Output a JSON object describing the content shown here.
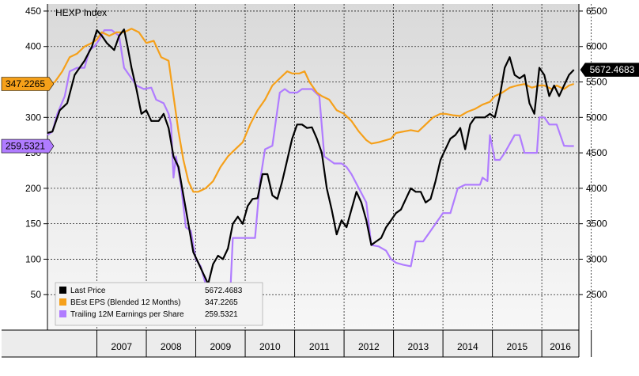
{
  "chart_data": {
    "type": "line",
    "title": "HEXP Index",
    "x_range": [
      2006.0,
      2016.75
    ],
    "left_axis": {
      "ticks": [
        50,
        100,
        150,
        200,
        250,
        300,
        350,
        400,
        450
      ],
      "range": [
        0,
        460
      ]
    },
    "right_axis": {
      "ticks": [
        2500,
        3000,
        3500,
        4000,
        4500,
        5000,
        5500,
        6000,
        6500
      ],
      "range": [
        2000,
        6600
      ]
    },
    "year_labels": [
      "2007",
      "2008",
      "2009",
      "2010",
      "2011",
      "2012",
      "2013",
      "2014",
      "2015",
      "2016"
    ],
    "grid": true,
    "legend_position": "bottom-left",
    "series": [
      {
        "name": "Last Price",
        "axis": "right",
        "color": "#000000",
        "last_value_label": "5672.4683",
        "points": [
          [
            2006.0,
            4780
          ],
          [
            2006.1,
            4800
          ],
          [
            2006.25,
            5100
          ],
          [
            2006.4,
            5200
          ],
          [
            2006.55,
            5600
          ],
          [
            2006.75,
            5800
          ],
          [
            2006.9,
            6000
          ],
          [
            2007.0,
            6230
          ],
          [
            2007.1,
            6150
          ],
          [
            2007.2,
            6050
          ],
          [
            2007.35,
            5950
          ],
          [
            2007.45,
            6150
          ],
          [
            2007.55,
            6240
          ],
          [
            2007.62,
            6000
          ],
          [
            2007.7,
            5700
          ],
          [
            2007.8,
            5400
          ],
          [
            2007.9,
            5050
          ],
          [
            2008.0,
            5100
          ],
          [
            2008.1,
            4950
          ],
          [
            2008.25,
            4950
          ],
          [
            2008.35,
            5050
          ],
          [
            2008.45,
            4850
          ],
          [
            2008.55,
            4450
          ],
          [
            2008.65,
            4300
          ],
          [
            2008.75,
            3900
          ],
          [
            2008.85,
            3500
          ],
          [
            2008.95,
            3100
          ],
          [
            2009.05,
            2950
          ],
          [
            2009.15,
            2800
          ],
          [
            2009.25,
            2650
          ],
          [
            2009.35,
            2930
          ],
          [
            2009.45,
            3050
          ],
          [
            2009.55,
            3000
          ],
          [
            2009.65,
            3150
          ],
          [
            2009.75,
            3500
          ],
          [
            2009.85,
            3600
          ],
          [
            2009.95,
            3500
          ],
          [
            2010.05,
            3750
          ],
          [
            2010.15,
            3850
          ],
          [
            2010.25,
            3860
          ],
          [
            2010.35,
            4200
          ],
          [
            2010.45,
            4200
          ],
          [
            2010.55,
            3900
          ],
          [
            2010.65,
            3850
          ],
          [
            2010.75,
            4100
          ],
          [
            2010.85,
            4400
          ],
          [
            2010.95,
            4700
          ],
          [
            2011.05,
            4900
          ],
          [
            2011.15,
            4900
          ],
          [
            2011.25,
            4850
          ],
          [
            2011.35,
            4860
          ],
          [
            2011.45,
            4700
          ],
          [
            2011.55,
            4500
          ],
          [
            2011.65,
            4000
          ],
          [
            2011.75,
            3700
          ],
          [
            2011.85,
            3350
          ],
          [
            2011.95,
            3550
          ],
          [
            2012.05,
            3450
          ],
          [
            2012.15,
            3700
          ],
          [
            2012.25,
            3950
          ],
          [
            2012.35,
            3800
          ],
          [
            2012.45,
            3550
          ],
          [
            2012.55,
            3200
          ],
          [
            2012.65,
            3250
          ],
          [
            2012.75,
            3300
          ],
          [
            2012.85,
            3450
          ],
          [
            2012.95,
            3550
          ],
          [
            2013.05,
            3650
          ],
          [
            2013.15,
            3700
          ],
          [
            2013.25,
            3850
          ],
          [
            2013.35,
            4000
          ],
          [
            2013.45,
            3950
          ],
          [
            2013.55,
            3950
          ],
          [
            2013.65,
            3800
          ],
          [
            2013.75,
            3850
          ],
          [
            2013.85,
            4100
          ],
          [
            2013.95,
            4400
          ],
          [
            2014.05,
            4550
          ],
          [
            2014.15,
            4700
          ],
          [
            2014.25,
            4750
          ],
          [
            2014.35,
            4850
          ],
          [
            2014.45,
            4550
          ],
          [
            2014.55,
            4900
          ],
          [
            2014.65,
            5000
          ],
          [
            2014.75,
            5000
          ],
          [
            2014.85,
            5000
          ],
          [
            2014.95,
            5050
          ],
          [
            2015.05,
            5000
          ],
          [
            2015.15,
            5300
          ],
          [
            2015.25,
            5700
          ],
          [
            2015.35,
            5850
          ],
          [
            2015.45,
            5600
          ],
          [
            2015.55,
            5550
          ],
          [
            2015.65,
            5600
          ],
          [
            2015.75,
            5200
          ],
          [
            2015.85,
            5050
          ],
          [
            2015.95,
            5700
          ],
          [
            2016.05,
            5600
          ],
          [
            2016.15,
            5300
          ],
          [
            2016.25,
            5450
          ],
          [
            2016.35,
            5300
          ],
          [
            2016.45,
            5450
          ],
          [
            2016.55,
            5600
          ],
          [
            2016.65,
            5672
          ]
        ]
      },
      {
        "name": "BEst EPS (Blended 12 Months)",
        "axis": "left",
        "color": "#f5a01a",
        "last_value_label": "347.2265",
        "points": [
          [
            2006.0,
            345
          ],
          [
            2006.15,
            350
          ],
          [
            2006.3,
            365
          ],
          [
            2006.45,
            385
          ],
          [
            2006.6,
            390
          ],
          [
            2006.75,
            400
          ],
          [
            2006.9,
            405
          ],
          [
            2007.0,
            410
          ],
          [
            2007.1,
            420
          ],
          [
            2007.25,
            415
          ],
          [
            2007.4,
            420
          ],
          [
            2007.55,
            420
          ],
          [
            2007.7,
            425
          ],
          [
            2007.85,
            420
          ],
          [
            2008.0,
            405
          ],
          [
            2008.15,
            408
          ],
          [
            2008.3,
            385
          ],
          [
            2008.45,
            380
          ],
          [
            2008.55,
            330
          ],
          [
            2008.65,
            280
          ],
          [
            2008.75,
            240
          ],
          [
            2008.85,
            210
          ],
          [
            2008.95,
            195
          ],
          [
            2009.05,
            195
          ],
          [
            2009.2,
            200
          ],
          [
            2009.35,
            210
          ],
          [
            2009.5,
            230
          ],
          [
            2009.65,
            245
          ],
          [
            2009.8,
            255
          ],
          [
            2009.95,
            265
          ],
          [
            2010.1,
            290
          ],
          [
            2010.25,
            310
          ],
          [
            2010.4,
            325
          ],
          [
            2010.55,
            345
          ],
          [
            2010.7,
            355
          ],
          [
            2010.85,
            365
          ],
          [
            2010.95,
            362
          ],
          [
            2011.1,
            362
          ],
          [
            2011.2,
            365
          ],
          [
            2011.3,
            350
          ],
          [
            2011.45,
            335
          ],
          [
            2011.55,
            330
          ],
          [
            2011.7,
            325
          ],
          [
            2011.85,
            310
          ],
          [
            2012.0,
            305
          ],
          [
            2012.15,
            295
          ],
          [
            2012.3,
            280
          ],
          [
            2012.45,
            268
          ],
          [
            2012.55,
            263
          ],
          [
            2012.7,
            265
          ],
          [
            2012.85,
            268
          ],
          [
            2012.95,
            270
          ],
          [
            2013.05,
            278
          ],
          [
            2013.2,
            280
          ],
          [
            2013.35,
            282
          ],
          [
            2013.5,
            280
          ],
          [
            2013.65,
            290
          ],
          [
            2013.8,
            300
          ],
          [
            2013.95,
            305
          ],
          [
            2014.05,
            305
          ],
          [
            2014.2,
            303
          ],
          [
            2014.35,
            302
          ],
          [
            2014.5,
            308
          ],
          [
            2014.65,
            312
          ],
          [
            2014.8,
            318
          ],
          [
            2014.95,
            322
          ],
          [
            2015.05,
            330
          ],
          [
            2015.2,
            335
          ],
          [
            2015.35,
            342
          ],
          [
            2015.5,
            345
          ],
          [
            2015.65,
            347
          ],
          [
            2015.8,
            342
          ],
          [
            2015.95,
            345
          ],
          [
            2016.05,
            345
          ],
          [
            2016.2,
            340
          ],
          [
            2016.3,
            345
          ],
          [
            2016.45,
            340
          ],
          [
            2016.55,
            345
          ],
          [
            2016.65,
            347.2265
          ]
        ]
      },
      {
        "name": "Trailing 12M Earnings per Share",
        "axis": "left",
        "color": "#b07cff",
        "last_value_label": "259.5321",
        "points": [
          [
            2006.0,
            275
          ],
          [
            2006.1,
            280
          ],
          [
            2006.2,
            305
          ],
          [
            2006.35,
            330
          ],
          [
            2006.45,
            365
          ],
          [
            2006.6,
            370
          ],
          [
            2006.75,
            370
          ],
          [
            2006.85,
            395
          ],
          [
            2006.95,
            400
          ],
          [
            2007.05,
            410
          ],
          [
            2007.15,
            423
          ],
          [
            2007.3,
            423
          ],
          [
            2007.45,
            415
          ],
          [
            2007.55,
            370
          ],
          [
            2007.7,
            355
          ],
          [
            2007.8,
            345
          ],
          [
            2007.95,
            340
          ],
          [
            2008.1,
            342
          ],
          [
            2008.2,
            325
          ],
          [
            2008.35,
            320
          ],
          [
            2008.45,
            305
          ],
          [
            2008.5,
            290
          ],
          [
            2008.55,
            215
          ],
          [
            2008.6,
            245
          ],
          [
            2008.7,
            205
          ],
          [
            2008.8,
            145
          ],
          [
            2008.9,
            140
          ],
          [
            2009.0,
            100
          ],
          [
            2009.1,
            90
          ],
          [
            2009.2,
            65
          ],
          [
            2009.3,
            55
          ],
          [
            2009.4,
            65
          ],
          [
            2009.5,
            55
          ],
          [
            2009.6,
            50
          ],
          [
            2009.7,
            55
          ],
          [
            2009.75,
            130
          ],
          [
            2009.9,
            130
          ],
          [
            2010.0,
            130
          ],
          [
            2010.2,
            130
          ],
          [
            2010.3,
            210
          ],
          [
            2010.4,
            255
          ],
          [
            2010.55,
            260
          ],
          [
            2010.7,
            335
          ],
          [
            2010.8,
            340
          ],
          [
            2010.9,
            335
          ],
          [
            2011.05,
            335
          ],
          [
            2011.15,
            340
          ],
          [
            2011.25,
            340
          ],
          [
            2011.35,
            340
          ],
          [
            2011.5,
            330
          ],
          [
            2011.6,
            245
          ],
          [
            2011.7,
            240
          ],
          [
            2011.8,
            235
          ],
          [
            2011.95,
            235
          ],
          [
            2012.05,
            230
          ],
          [
            2012.15,
            220
          ],
          [
            2012.3,
            200
          ],
          [
            2012.45,
            180
          ],
          [
            2012.55,
            120
          ],
          [
            2012.7,
            118
          ],
          [
            2012.85,
            112
          ],
          [
            2012.95,
            100
          ],
          [
            2013.05,
            95
          ],
          [
            2013.2,
            92
          ],
          [
            2013.35,
            90
          ],
          [
            2013.45,
            125
          ],
          [
            2013.6,
            125
          ],
          [
            2013.75,
            140
          ],
          [
            2013.85,
            150
          ],
          [
            2014.0,
            165
          ],
          [
            2014.15,
            165
          ],
          [
            2014.3,
            200
          ],
          [
            2014.45,
            205
          ],
          [
            2014.6,
            205
          ],
          [
            2014.75,
            205
          ],
          [
            2014.8,
            215
          ],
          [
            2014.9,
            210
          ],
          [
            2014.95,
            275
          ],
          [
            2015.05,
            240
          ],
          [
            2015.15,
            240
          ],
          [
            2015.25,
            250
          ],
          [
            2015.45,
            275
          ],
          [
            2015.55,
            275
          ],
          [
            2015.65,
            250
          ],
          [
            2015.75,
            250
          ],
          [
            2015.9,
            250
          ],
          [
            2015.95,
            300
          ],
          [
            2016.05,
            300
          ],
          [
            2016.15,
            290
          ],
          [
            2016.3,
            290
          ],
          [
            2016.45,
            260
          ],
          [
            2016.55,
            259.5321
          ],
          [
            2016.65,
            259.5321
          ]
        ]
      }
    ]
  }
}
